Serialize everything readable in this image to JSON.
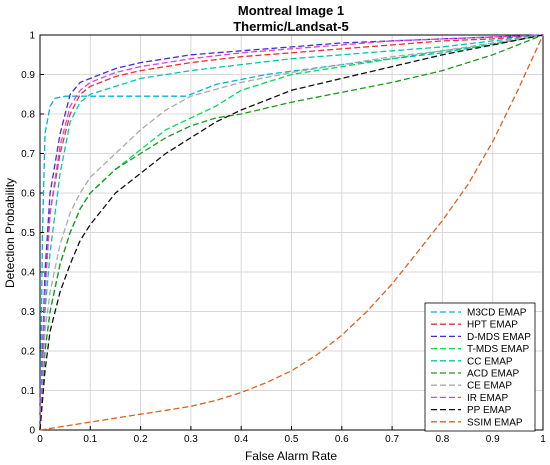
{
  "chart_data": {
    "type": "line",
    "title": "Montreal Image 1",
    "subtitle": "Thermic/Landsat-5",
    "xlabel": "False Alarm Rate",
    "ylabel": "Detection Probability",
    "xlim": [
      0,
      1
    ],
    "ylim": [
      0,
      1
    ],
    "xticks": [
      "0",
      "0.1",
      "0.2",
      "0.3",
      "0.4",
      "0.5",
      "0.6",
      "0.7",
      "0.8",
      "0.9",
      "1"
    ],
    "yticks": [
      "0",
      "0.1",
      "0.2",
      "0.3",
      "0.4",
      "0.5",
      "0.6",
      "0.7",
      "0.8",
      "0.9",
      "1"
    ],
    "grid": true,
    "legend_position": "bottom-right",
    "series": [
      {
        "name": "M3CD EMAP",
        "color": "#00b4d8",
        "dash": "6,3",
        "x": [
          0,
          0.005,
          0.01,
          0.02,
          0.03,
          0.05,
          0.1,
          0.2,
          0.29,
          0.3,
          0.35,
          0.45,
          0.6,
          0.8,
          1.0
        ],
        "y": [
          0,
          0.5,
          0.75,
          0.82,
          0.84,
          0.845,
          0.845,
          0.845,
          0.845,
          0.85,
          0.875,
          0.9,
          0.925,
          0.955,
          1.0
        ]
      },
      {
        "name": "HPT EMAP",
        "color": "#e83030",
        "dash": "6,3",
        "x": [
          0,
          0.01,
          0.02,
          0.04,
          0.06,
          0.08,
          0.1,
          0.15,
          0.2,
          0.3,
          0.4,
          0.5,
          0.6,
          0.7,
          0.8,
          0.9,
          1.0
        ],
        "y": [
          0,
          0.35,
          0.55,
          0.7,
          0.8,
          0.85,
          0.87,
          0.895,
          0.91,
          0.93,
          0.945,
          0.955,
          0.965,
          0.975,
          0.985,
          0.99,
          1.0
        ]
      },
      {
        "name": "D-MDS EMAP",
        "color": "#3f2fd6",
        "dash": "6,3",
        "x": [
          0,
          0.01,
          0.02,
          0.04,
          0.06,
          0.08,
          0.1,
          0.15,
          0.2,
          0.3,
          0.4,
          0.5,
          0.6,
          0.7,
          0.8,
          0.9,
          1.0
        ],
        "y": [
          0,
          0.4,
          0.6,
          0.75,
          0.85,
          0.88,
          0.89,
          0.915,
          0.93,
          0.95,
          0.96,
          0.97,
          0.98,
          0.985,
          0.99,
          0.995,
          1.0
        ]
      },
      {
        "name": "T-MDS EMAP",
        "color": "#00dd55",
        "dash": "6,3",
        "x": [
          0,
          0.01,
          0.02,
          0.04,
          0.06,
          0.08,
          0.1,
          0.15,
          0.2,
          0.25,
          0.3,
          0.35,
          0.4,
          0.5,
          0.6,
          0.7,
          0.8,
          0.9,
          1.0
        ],
        "y": [
          0,
          0.2,
          0.3,
          0.42,
          0.5,
          0.56,
          0.6,
          0.66,
          0.71,
          0.76,
          0.79,
          0.82,
          0.86,
          0.9,
          0.92,
          0.94,
          0.96,
          0.975,
          1.0
        ]
      },
      {
        "name": "CC EMAP",
        "color": "#00c8b0",
        "dash": "6,3",
        "x": [
          0,
          0.01,
          0.02,
          0.04,
          0.06,
          0.08,
          0.1,
          0.15,
          0.2,
          0.3,
          0.4,
          0.5,
          0.6,
          0.7,
          0.8,
          0.9,
          1.0
        ],
        "y": [
          0,
          0.3,
          0.45,
          0.65,
          0.78,
          0.83,
          0.85,
          0.87,
          0.89,
          0.91,
          0.925,
          0.94,
          0.95,
          0.96,
          0.97,
          0.985,
          1.0
        ]
      },
      {
        "name": "ACD EMAP",
        "color": "#1a9a1a",
        "dash": "6,3",
        "x": [
          0,
          0.01,
          0.02,
          0.04,
          0.06,
          0.08,
          0.1,
          0.15,
          0.2,
          0.25,
          0.3,
          0.35,
          0.4,
          0.5,
          0.6,
          0.7,
          0.8,
          0.9,
          1.0
        ],
        "y": [
          0,
          0.2,
          0.3,
          0.42,
          0.5,
          0.56,
          0.6,
          0.66,
          0.7,
          0.74,
          0.77,
          0.79,
          0.8,
          0.83,
          0.855,
          0.88,
          0.91,
          0.95,
          1.0
        ]
      },
      {
        "name": "CE EMAP",
        "color": "#aaaaaa",
        "dash": "6,3",
        "x": [
          0,
          0.01,
          0.02,
          0.04,
          0.06,
          0.08,
          0.1,
          0.15,
          0.2,
          0.25,
          0.3,
          0.4,
          0.5,
          0.6,
          0.7,
          0.8,
          0.9,
          1.0
        ],
        "y": [
          0,
          0.25,
          0.35,
          0.47,
          0.55,
          0.6,
          0.64,
          0.7,
          0.76,
          0.81,
          0.845,
          0.88,
          0.905,
          0.925,
          0.945,
          0.96,
          0.98,
          1.0
        ]
      },
      {
        "name": "IR EMAP",
        "color": "#e040e0",
        "dash": "6,3",
        "x": [
          0,
          0.01,
          0.02,
          0.04,
          0.06,
          0.08,
          0.1,
          0.15,
          0.2,
          0.3,
          0.4,
          0.5,
          0.6,
          0.7,
          0.8,
          0.9,
          1.0
        ],
        "y": [
          0,
          0.35,
          0.55,
          0.72,
          0.82,
          0.86,
          0.88,
          0.905,
          0.92,
          0.94,
          0.955,
          0.965,
          0.975,
          0.985,
          0.99,
          0.995,
          1.0
        ]
      },
      {
        "name": "PP EMAP",
        "color": "#111111",
        "dash": "6,3",
        "x": [
          0,
          0.01,
          0.02,
          0.04,
          0.06,
          0.08,
          0.1,
          0.15,
          0.2,
          0.25,
          0.3,
          0.35,
          0.4,
          0.5,
          0.6,
          0.7,
          0.8,
          0.9,
          1.0
        ],
        "y": [
          0,
          0.15,
          0.25,
          0.35,
          0.42,
          0.48,
          0.52,
          0.6,
          0.65,
          0.7,
          0.74,
          0.78,
          0.81,
          0.86,
          0.89,
          0.92,
          0.95,
          0.975,
          1.0
        ]
      },
      {
        "name": "SSIM EMAP",
        "color": "#e06020",
        "dash": "6,3",
        "x": [
          0,
          0.05,
          0.1,
          0.15,
          0.2,
          0.25,
          0.3,
          0.35,
          0.4,
          0.45,
          0.5,
          0.55,
          0.6,
          0.65,
          0.7,
          0.75,
          0.8,
          0.85,
          0.9,
          0.95,
          1.0
        ],
        "y": [
          0,
          0.01,
          0.02,
          0.03,
          0.04,
          0.05,
          0.06,
          0.075,
          0.095,
          0.12,
          0.15,
          0.19,
          0.24,
          0.3,
          0.37,
          0.45,
          0.53,
          0.62,
          0.73,
          0.86,
          1.0
        ]
      }
    ]
  }
}
